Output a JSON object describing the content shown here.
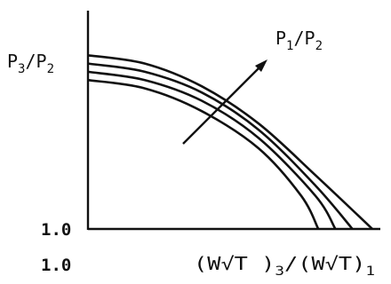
{
  "chart_data": {
    "type": "line",
    "ylabel": {
      "main": "P",
      "sub1": "3",
      "slash": "/P",
      "sub2": "2"
    },
    "xlabel": {
      "part1": "(W√T )",
      "sub1": "3",
      "slash": "/(W√T)",
      "sub2": "1"
    },
    "param_label": {
      "main": "P",
      "sub1": "1",
      "slash": "/P",
      "sub2": "2"
    },
    "x_tick": "1.0",
    "y_tick": "1.0",
    "xlim": [
      0,
      10
    ],
    "ylim": [
      0,
      10
    ],
    "grid": false,
    "series": [
      {
        "x": [
          0,
          2,
          4,
          6,
          8,
          10
        ],
        "y": [
          8.4,
          8.0,
          6.9,
          5.1,
          2.6,
          0
        ]
      },
      {
        "x": [
          0,
          2,
          4,
          6,
          8,
          9.3
        ],
        "y": [
          8.0,
          7.6,
          6.6,
          4.8,
          2.1,
          0
        ]
      },
      {
        "x": [
          0,
          2,
          4,
          6,
          8,
          8.7
        ],
        "y": [
          7.6,
          7.2,
          6.2,
          4.4,
          1.6,
          0
        ]
      },
      {
        "x": [
          0,
          2,
          4,
          6,
          7.5,
          8.1
        ],
        "y": [
          7.2,
          6.8,
          5.7,
          3.9,
          1.6,
          0
        ]
      }
    ],
    "line_color": "#111111"
  }
}
